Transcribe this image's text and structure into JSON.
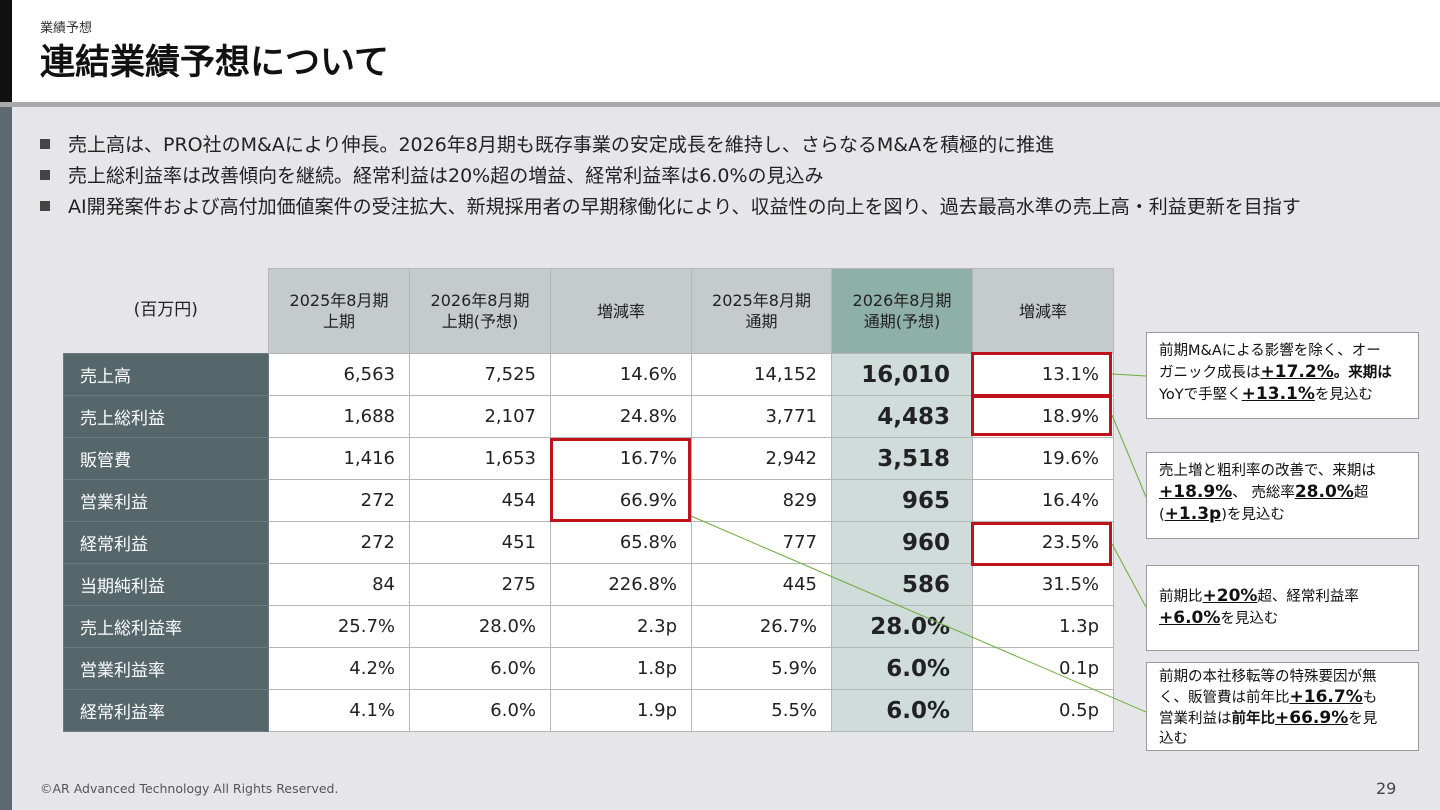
{
  "header": {
    "section_label": "業績予想",
    "title": "連結業績予想について"
  },
  "bullets": [
    "売上高は、PRO社のM&Aにより伸長。2026年8月期も既存事業の安定成長を維持し、さらなるM&Aを積極的に推進",
    "売上総利益率は改善傾向を継続。経常利益は20%超の増益、経常利益率は6.0%の見込み",
    "AI開発案件および高付加価値案件の受注拡大、新規採用者の早期稼働化により、収益性の向上を図り、過去最高水準の売上高・利益更新を目指す"
  ],
  "table": {
    "unit": "(百万円)",
    "columns": [
      {
        "line1": "2025年8月期",
        "line2": "上期"
      },
      {
        "line1": "2026年8月期",
        "line2": "上期(予想)"
      },
      {
        "line1": "増減率",
        "line2": ""
      },
      {
        "line1": "2025年8月期",
        "line2": "通期"
      },
      {
        "line1": "2026年8月期",
        "line2": "通期(予想)"
      },
      {
        "line1": "増減率",
        "line2": ""
      }
    ],
    "rows": [
      {
        "label": "売上高",
        "values": [
          "6,563",
          "7,525",
          "14.6%",
          "14,152",
          "16,010",
          "13.1%"
        ]
      },
      {
        "label": "売上総利益",
        "values": [
          "1,688",
          "2,107",
          "24.8%",
          "3,771",
          "4,483",
          "18.9%"
        ]
      },
      {
        "label": "販管費",
        "values": [
          "1,416",
          "1,653",
          "16.7%",
          "2,942",
          "3,518",
          "19.6%"
        ]
      },
      {
        "label": "営業利益",
        "values": [
          "272",
          "454",
          "66.9%",
          "829",
          "965",
          "16.4%"
        ]
      },
      {
        "label": "経常利益",
        "values": [
          "272",
          "451",
          "65.8%",
          "777",
          "960",
          "23.5%"
        ]
      },
      {
        "label": "当期純利益",
        "values": [
          "84",
          "275",
          "226.8%",
          "445",
          "586",
          "31.5%"
        ]
      },
      {
        "label": "売上総利益率",
        "values": [
          "25.7%",
          "28.0%",
          "2.3p",
          "26.7%",
          "28.0%",
          "1.3p"
        ]
      },
      {
        "label": "営業利益率",
        "values": [
          "4.2%",
          "6.0%",
          "1.8p",
          "5.9%",
          "6.0%",
          "0.1p"
        ]
      },
      {
        "label": "経常利益率",
        "values": [
          "4.1%",
          "6.0%",
          "1.9p",
          "5.5%",
          "6.0%",
          "0.5p"
        ]
      }
    ]
  },
  "notes": {
    "note1": {
      "a": "前期M&Aによる影響を除く、オー",
      "b": "ガニック成長は",
      "c": "+17.2%",
      "d": "。来期は",
      "e": "YoYで手堅く",
      "f": "+13.1%",
      "g": "を見込む"
    },
    "note2": {
      "a": "売上増と粗利率の改善で、来期は",
      "b": "+18.9%",
      "c": "、 売総率",
      "d": "28.0%",
      "e": "超",
      "f": "(",
      "g": "+1.3p",
      "h": ")を見込む"
    },
    "note3": {
      "a": "前期比",
      "b": "+20%",
      "c": "超、経常利益率",
      "d": "+6.0%",
      "e": "を見込む"
    },
    "note4": {
      "a": "前期の本社移転等の特殊要因が無",
      "b": "く、販管費は前年比",
      "c": "+16.7%",
      "d": "も",
      "e": "営業利益は",
      "f": "前年比",
      "g": "+66.9%",
      "h": "を見",
      "i": "込む"
    }
  },
  "colors": {
    "row_label_bg": "#56676b",
    "header_bg": "#c5cacb",
    "highlight_col_header": "#8fb0a6",
    "highlight_col_cell": "#cfdcda",
    "red_box": "#c0121b",
    "connector_line": "#6aaa3a"
  },
  "footer": {
    "copyright": "©AR Advanced Technology All Rights Reserved.",
    "page_number": "29"
  }
}
